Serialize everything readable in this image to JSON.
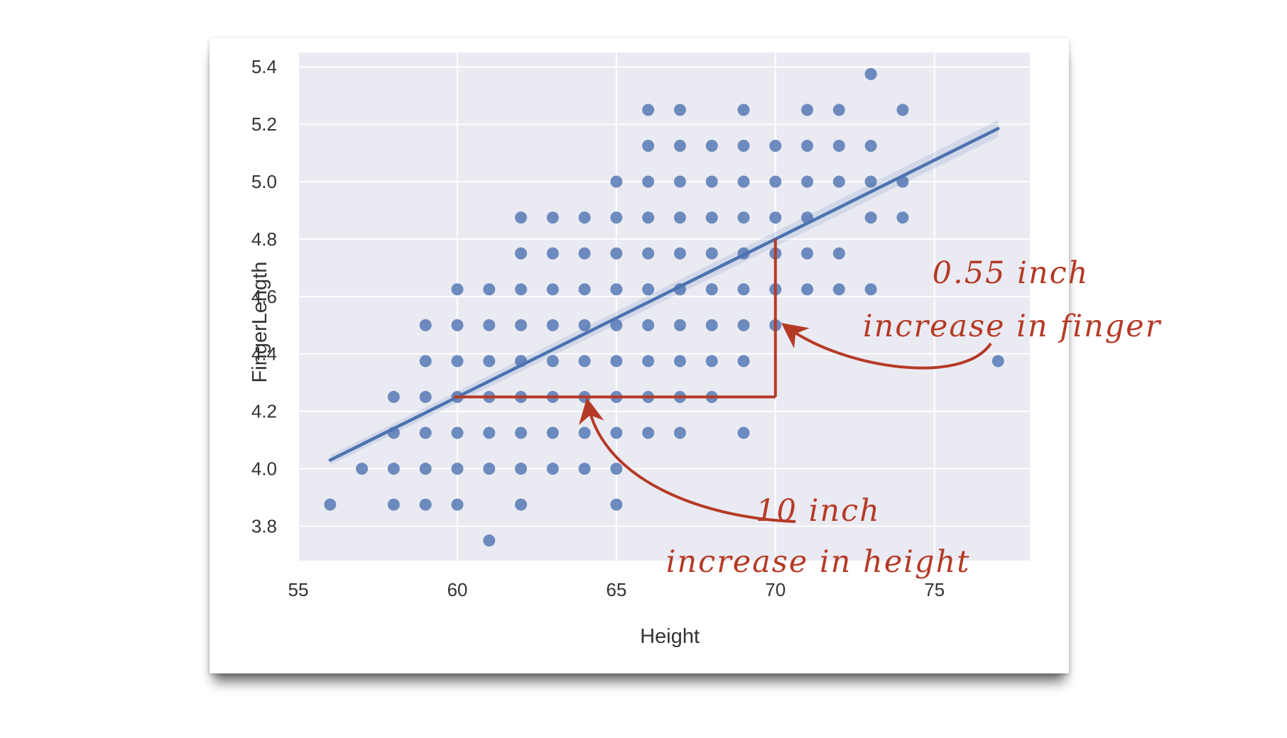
{
  "chart_data": {
    "type": "scatter",
    "xlabel": "Height",
    "ylabel": "FingerLength",
    "xlim": [
      55,
      78
    ],
    "ylim": [
      3.68,
      5.45
    ],
    "xticks": [
      55,
      60,
      65,
      70,
      75
    ],
    "yticks": [
      3.8,
      4.0,
      4.2,
      4.4,
      4.6,
      4.8,
      5.0,
      5.2,
      5.4
    ],
    "xtick_labels": [
      "55",
      "60",
      "65",
      "70",
      "75"
    ],
    "ytick_labels": [
      "3.8",
      "4.0",
      "4.2",
      "4.4",
      "4.6",
      "4.8",
      "5.0",
      "5.2",
      "5.4"
    ],
    "grid": true,
    "points": [
      [
        56,
        3.875
      ],
      [
        57,
        4.0
      ],
      [
        58,
        3.875
      ],
      [
        58,
        4.0
      ],
      [
        58,
        4.125
      ],
      [
        58,
        4.25
      ],
      [
        59,
        3.875
      ],
      [
        59,
        4.0
      ],
      [
        59,
        4.125
      ],
      [
        59,
        4.25
      ],
      [
        59,
        4.375
      ],
      [
        59,
        4.5
      ],
      [
        60,
        3.875
      ],
      [
        60,
        4.0
      ],
      [
        60,
        4.125
      ],
      [
        60,
        4.25
      ],
      [
        60,
        4.375
      ],
      [
        60,
        4.5
      ],
      [
        60,
        4.625
      ],
      [
        61,
        3.75
      ],
      [
        61,
        4.0
      ],
      [
        61,
        4.125
      ],
      [
        61,
        4.25
      ],
      [
        61,
        4.375
      ],
      [
        61,
        4.5
      ],
      [
        61,
        4.625
      ],
      [
        62,
        3.875
      ],
      [
        62,
        4.0
      ],
      [
        62,
        4.125
      ],
      [
        62,
        4.25
      ],
      [
        62,
        4.375
      ],
      [
        62,
        4.5
      ],
      [
        62,
        4.625
      ],
      [
        62,
        4.75
      ],
      [
        62,
        4.875
      ],
      [
        63,
        4.0
      ],
      [
        63,
        4.125
      ],
      [
        63,
        4.25
      ],
      [
        63,
        4.375
      ],
      [
        63,
        4.5
      ],
      [
        63,
        4.625
      ],
      [
        63,
        4.75
      ],
      [
        63,
        4.875
      ],
      [
        64,
        4.0
      ],
      [
        64,
        4.125
      ],
      [
        64,
        4.25
      ],
      [
        64,
        4.375
      ],
      [
        64,
        4.5
      ],
      [
        64,
        4.625
      ],
      [
        64,
        4.75
      ],
      [
        64,
        4.875
      ],
      [
        65,
        3.875
      ],
      [
        65,
        4.0
      ],
      [
        65,
        4.125
      ],
      [
        65,
        4.25
      ],
      [
        65,
        4.375
      ],
      [
        65,
        4.5
      ],
      [
        65,
        4.625
      ],
      [
        65,
        4.75
      ],
      [
        65,
        4.875
      ],
      [
        65,
        5.0
      ],
      [
        66,
        4.125
      ],
      [
        66,
        4.25
      ],
      [
        66,
        4.375
      ],
      [
        66,
        4.5
      ],
      [
        66,
        4.625
      ],
      [
        66,
        4.75
      ],
      [
        66,
        4.875
      ],
      [
        66,
        5.0
      ],
      [
        66,
        5.125
      ],
      [
        66,
        5.25
      ],
      [
        67,
        4.125
      ],
      [
        67,
        4.25
      ],
      [
        67,
        4.375
      ],
      [
        67,
        4.5
      ],
      [
        67,
        4.625
      ],
      [
        67,
        4.75
      ],
      [
        67,
        4.875
      ],
      [
        67,
        5.0
      ],
      [
        67,
        5.125
      ],
      [
        67,
        5.25
      ],
      [
        68,
        4.25
      ],
      [
        68,
        4.375
      ],
      [
        68,
        4.5
      ],
      [
        68,
        4.625
      ],
      [
        68,
        4.75
      ],
      [
        68,
        4.875
      ],
      [
        68,
        5.0
      ],
      [
        68,
        5.125
      ],
      [
        69,
        4.125
      ],
      [
        69,
        4.375
      ],
      [
        69,
        4.5
      ],
      [
        69,
        4.625
      ],
      [
        69,
        4.75
      ],
      [
        69,
        4.875
      ],
      [
        69,
        5.0
      ],
      [
        69,
        5.125
      ],
      [
        69,
        5.25
      ],
      [
        70,
        4.5
      ],
      [
        70,
        4.625
      ],
      [
        70,
        4.75
      ],
      [
        70,
        4.875
      ],
      [
        70,
        5.0
      ],
      [
        70,
        5.125
      ],
      [
        71,
        4.625
      ],
      [
        71,
        4.75
      ],
      [
        71,
        4.875
      ],
      [
        71,
        5.0
      ],
      [
        71,
        5.125
      ],
      [
        71,
        5.25
      ],
      [
        72,
        4.625
      ],
      [
        72,
        4.75
      ],
      [
        72,
        5.0
      ],
      [
        72,
        5.125
      ],
      [
        72,
        5.25
      ],
      [
        73,
        4.625
      ],
      [
        73,
        4.875
      ],
      [
        73,
        5.0
      ],
      [
        73,
        5.125
      ],
      [
        73,
        5.375
      ],
      [
        74,
        4.875
      ],
      [
        74,
        5.0
      ],
      [
        74,
        5.25
      ],
      [
        77,
        4.375
      ]
    ],
    "regression_line": {
      "x": [
        56,
        77
      ],
      "y": [
        4.03,
        5.185
      ]
    },
    "annotations": [
      {
        "text_lines": [
          "0.55 inch",
          "increase in finger"
        ]
      },
      {
        "text_lines": [
          "10 inch",
          "increase in height"
        ]
      }
    ],
    "annotation_bracket": {
      "x_start": 60,
      "x_end": 70,
      "y_start": 4.25,
      "y_end": 4.8
    }
  },
  "colors": {
    "plot_background": "#eaeaf2",
    "grid": "#ffffff",
    "points": "#4c72b0",
    "regression_line": "#4c72b0",
    "annotation": "#b53a26",
    "text": "#333333"
  }
}
